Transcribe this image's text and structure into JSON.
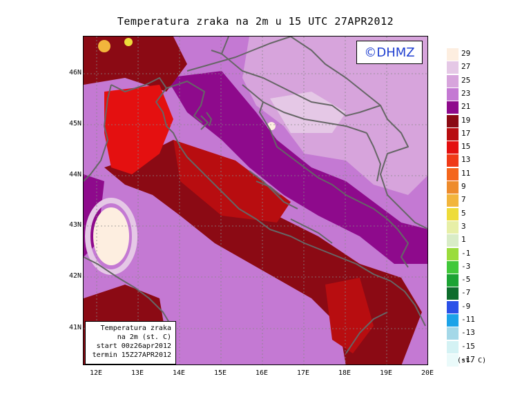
{
  "title": "Temperatura zraka na 2m u 15 UTC 27APR2012",
  "copyright": "©DHMZ",
  "infobox": {
    "line1": "Temperatura zraka",
    "line2": "na 2m (st. C)",
    "line3": "start 00z26apr2012",
    "line4": "termin 15Z27APR2012"
  },
  "lat_labels": [
    "46N",
    "45N",
    "44N",
    "43N",
    "42N",
    "41N"
  ],
  "lon_labels": [
    "12E",
    "13E",
    "14E",
    "15E",
    "16E",
    "17E",
    "18E",
    "19E",
    "20E"
  ],
  "legend": {
    "units": "(st. C)",
    "levels": [
      {
        "label": "29",
        "color": "#fdeee0"
      },
      {
        "label": "27",
        "color": "#e5c8e6"
      },
      {
        "label": "25",
        "color": "#d7a4dc"
      },
      {
        "label": "23",
        "color": "#c479d3"
      },
      {
        "label": "21",
        "color": "#8e0a8c"
      },
      {
        "label": "19",
        "color": "#8b0a14"
      },
      {
        "label": "17",
        "color": "#b80d10"
      },
      {
        "label": "15",
        "color": "#e41010"
      },
      {
        "label": "13",
        "color": "#f03a18"
      },
      {
        "label": "11",
        "color": "#f4661c"
      },
      {
        "label": "9",
        "color": "#ee8b2c"
      },
      {
        "label": "7",
        "color": "#f2b53c"
      },
      {
        "label": "5",
        "color": "#eedc3a"
      },
      {
        "label": "3",
        "color": "#e7efa7"
      },
      {
        "label": "1",
        "color": "#d8ecc6"
      },
      {
        "label": "-1",
        "color": "#9adc3c"
      },
      {
        "label": "-3",
        "color": "#41c83a"
      },
      {
        "label": "-5",
        "color": "#1ca334"
      },
      {
        "label": "-7",
        "color": "#0e6d2d"
      },
      {
        "label": "-9",
        "color": "#2b50e8"
      },
      {
        "label": "-11",
        "color": "#1ca3e8"
      },
      {
        "label": "-13",
        "color": "#a4d8e8"
      },
      {
        "label": "-15",
        "color": "#d4f2f4"
      },
      {
        "label": "-17",
        "color": "#eafafa"
      }
    ]
  },
  "colors": {
    "coast": "#666666",
    "grid": "#888888",
    "copyright_text": "#1f3fd0"
  }
}
